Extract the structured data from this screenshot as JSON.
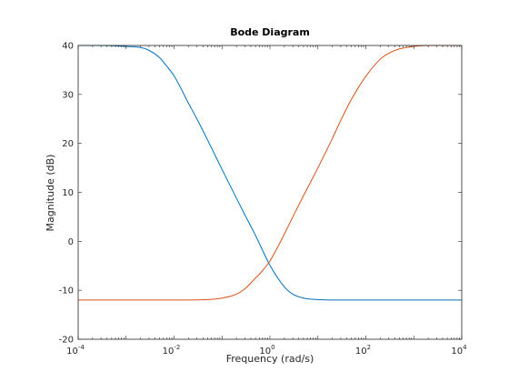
{
  "chart_data": {
    "type": "line",
    "title": "Bode Diagram",
    "xlabel": "Frequency  (rad/s)",
    "ylabel": "Magnitude (dB)",
    "xscale": "log",
    "xlim": [
      0.0001,
      10000
    ],
    "ylim": [
      -20,
      40
    ],
    "grid": false,
    "xtick_labels": [
      {
        "value": 0.0001,
        "base": "10",
        "exp": "-4"
      },
      {
        "value": 0.01,
        "base": "10",
        "exp": "-2"
      },
      {
        "value": 1,
        "base": "10",
        "exp": "0"
      },
      {
        "value": 100,
        "base": "10",
        "exp": "2"
      },
      {
        "value": 10000,
        "base": "10",
        "exp": "4"
      }
    ],
    "ytick_labels": [
      "-20",
      "-10",
      "0",
      "10",
      "20",
      "30",
      "40"
    ],
    "yticks": [
      -20,
      -10,
      0,
      10,
      20,
      30,
      40
    ],
    "series": [
      {
        "color": "#0072BD",
        "x": [
          0.0001,
          0.0003,
          0.001,
          0.002,
          0.003,
          0.005,
          0.007,
          0.01,
          0.02,
          0.03,
          0.05,
          0.1,
          0.2,
          0.3,
          0.5,
          1,
          2,
          3,
          5,
          7,
          10,
          20,
          50,
          100,
          1000,
          10000
        ],
        "y": [
          40,
          40,
          39.8,
          39.6,
          39,
          37.5,
          35.8,
          33.8,
          28.2,
          25,
          20.7,
          14.7,
          8.8,
          5.4,
          1.2,
          -4.9,
          -9.3,
          -10.8,
          -11.6,
          -11.8,
          -11.9,
          -12,
          -12,
          -12,
          -12,
          -12
        ]
      },
      {
        "color": "#D95319",
        "x": [
          0.0001,
          0.001,
          0.01,
          0.05,
          0.1,
          0.2,
          0.3,
          0.5,
          0.7,
          1,
          2,
          3,
          5,
          10,
          20,
          30,
          50,
          100,
          200,
          300,
          500,
          1000,
          2000,
          5000,
          10000
        ],
        "y": [
          -12,
          -12,
          -12,
          -11.9,
          -11.6,
          -10.8,
          -9.7,
          -7.5,
          -6,
          -4,
          1.5,
          5,
          9.3,
          15,
          21,
          24.7,
          29,
          33.7,
          37.2,
          38.4,
          39.3,
          39.8,
          40,
          40,
          40
        ]
      }
    ]
  }
}
